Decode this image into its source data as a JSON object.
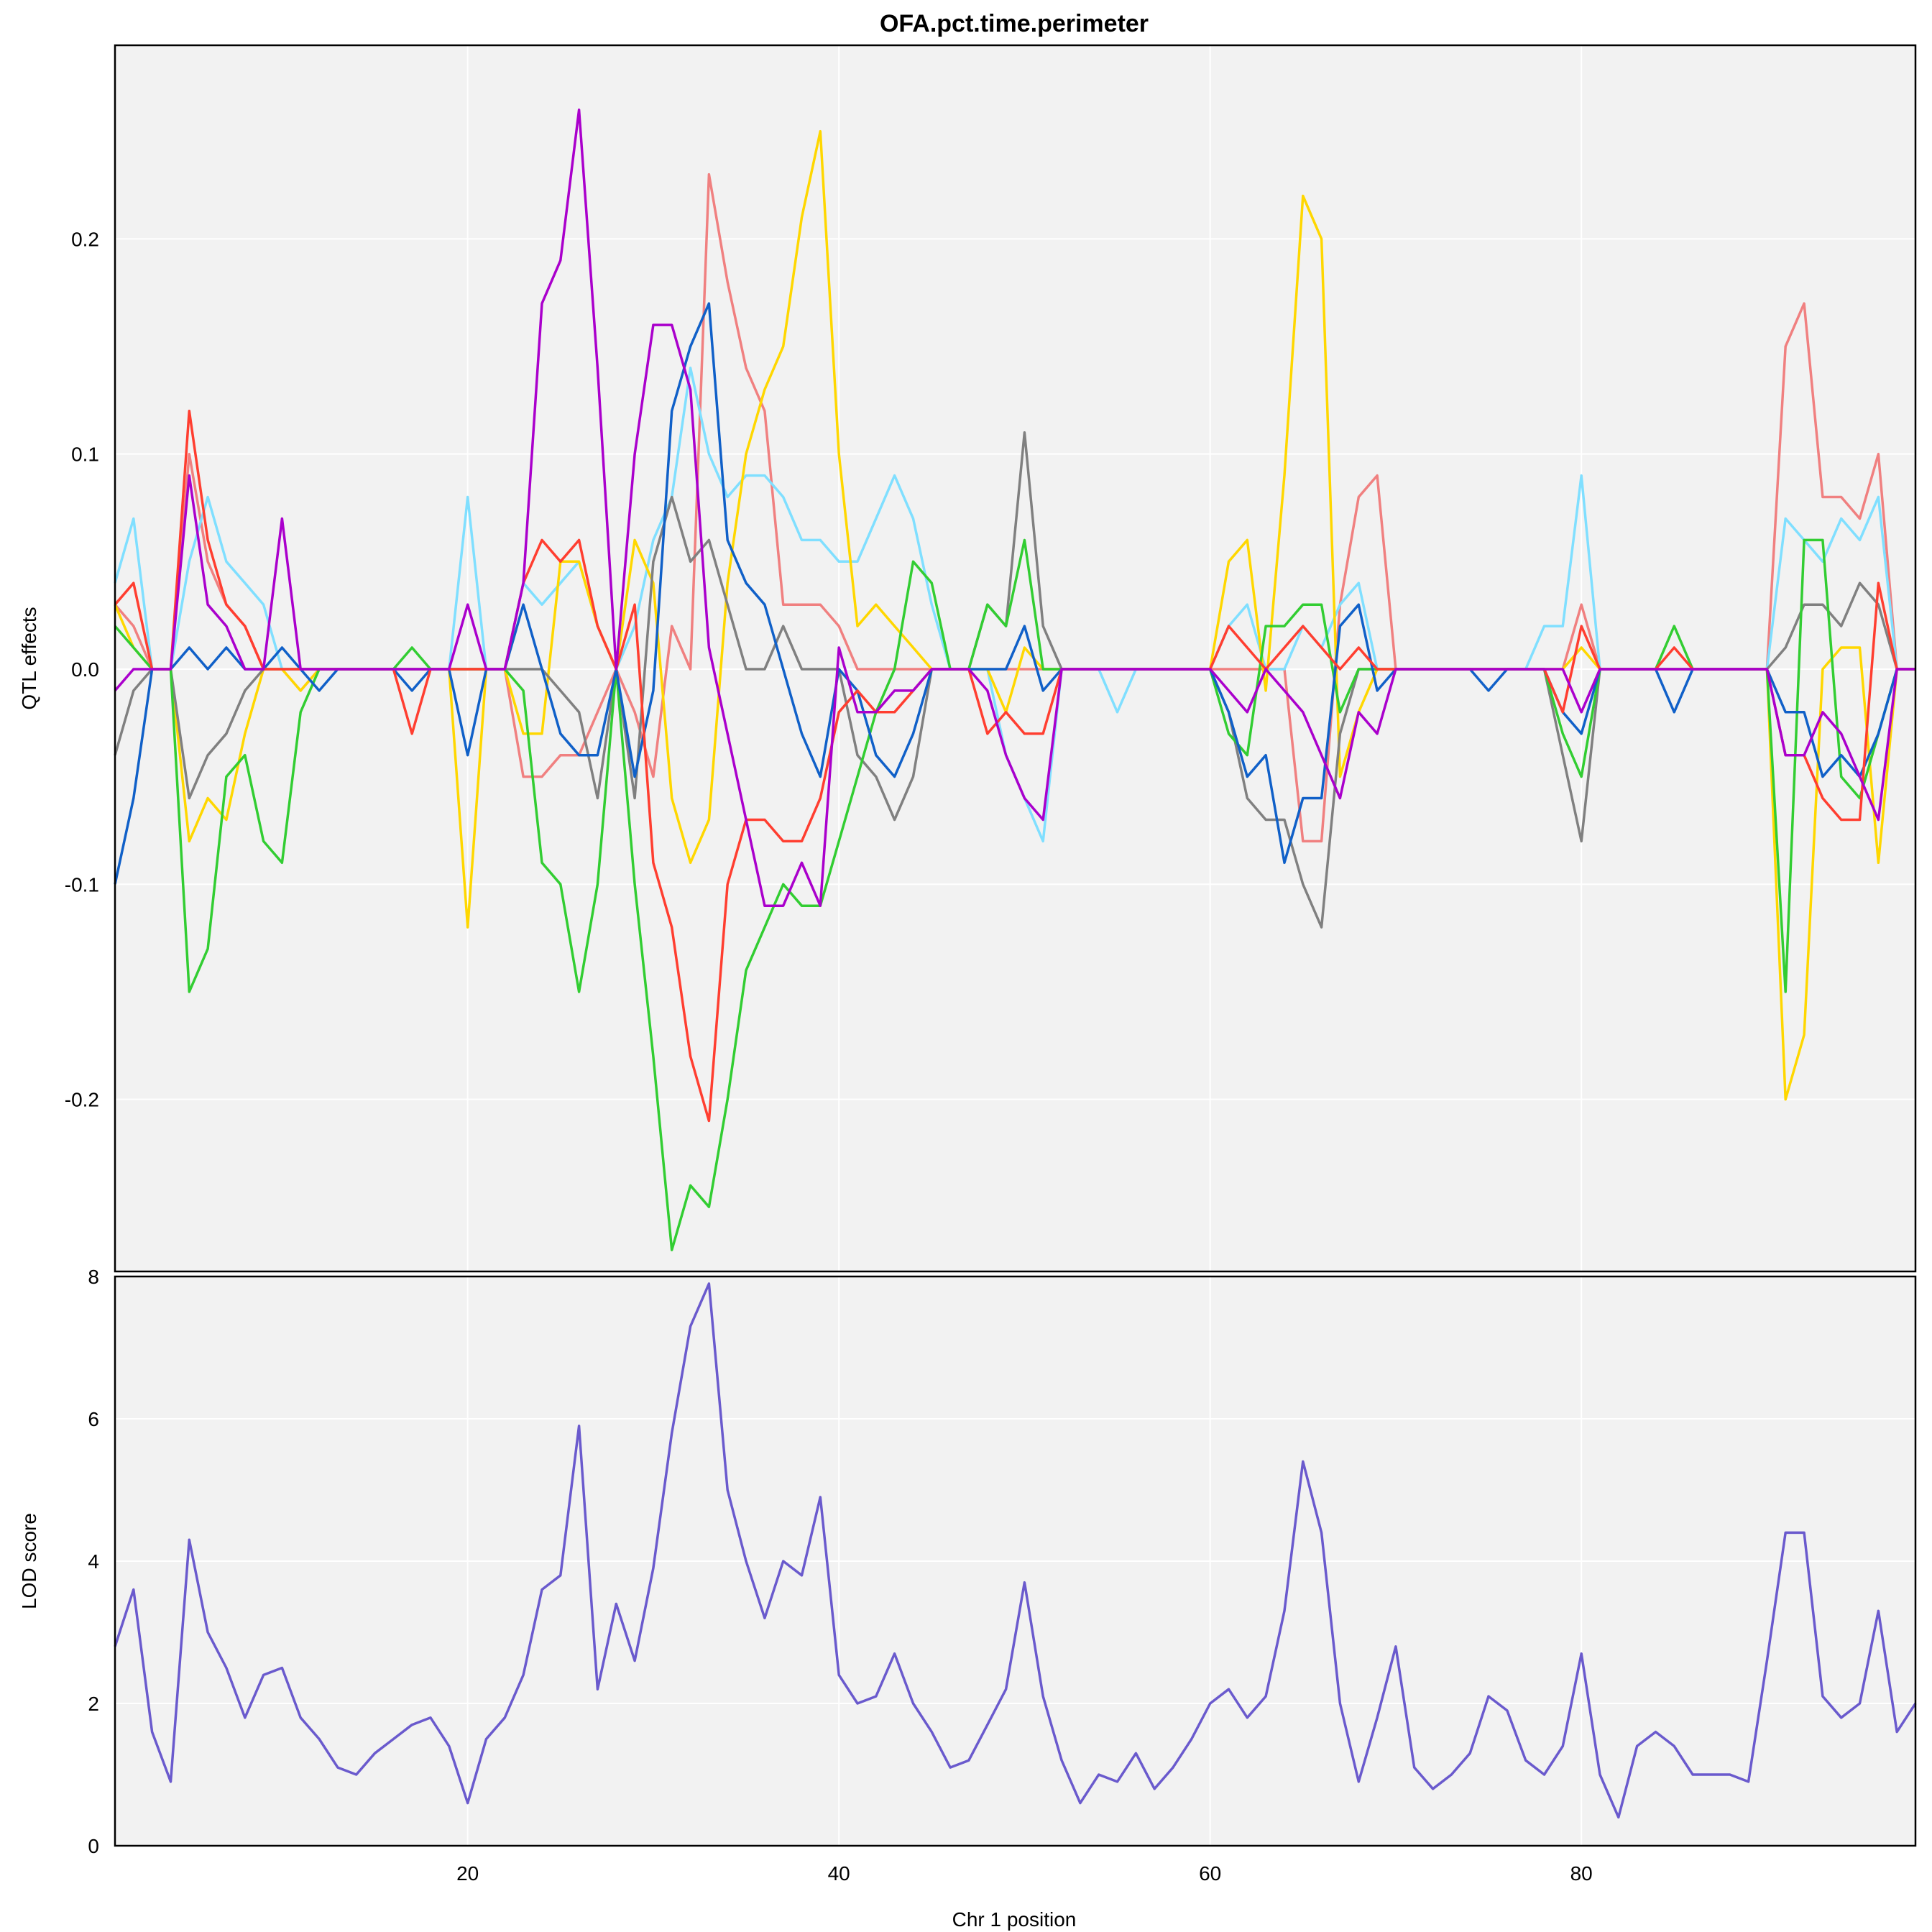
{
  "chart_data": [
    {
      "type": "line",
      "title": "OFA.pct.time.perimeter",
      "ylabel": "QTL effects",
      "xlabel": "",
      "xlim": [
        1,
        98
      ],
      "ylim": [
        -0.28,
        0.29
      ],
      "grid": true,
      "y_ticks": [
        -0.2,
        -0.1,
        0.0,
        0.1,
        0.2
      ],
      "y_tick_labels": [
        "-0.2",
        "-0.1",
        "0.0",
        "0.1",
        "0.2"
      ],
      "x_gridlines": [
        20,
        40,
        60,
        80
      ],
      "x": [
        1,
        2,
        3,
        4,
        5,
        6,
        7,
        8,
        9,
        10,
        11,
        12,
        13,
        14,
        15,
        16,
        17,
        18,
        19,
        20,
        21,
        22,
        23,
        24,
        25,
        26,
        27,
        28,
        29,
        30,
        31,
        32,
        33,
        34,
        35,
        36,
        37,
        38,
        39,
        40,
        41,
        42,
        43,
        44,
        45,
        46,
        47,
        48,
        49,
        50,
        51,
        52,
        53,
        54,
        55,
        56,
        57,
        58,
        59,
        60,
        61,
        62,
        63,
        64,
        65,
        66,
        67,
        68,
        69,
        70,
        71,
        72,
        73,
        74,
        75,
        76,
        77,
        78,
        79,
        80,
        81,
        82,
        83,
        84,
        85,
        86,
        87,
        88,
        89,
        90,
        91,
        92,
        93,
        94,
        95,
        96,
        97,
        98
      ],
      "series": [
        {
          "color": "#f08080",
          "values": [
            0.03,
            0.02,
            0.0,
            0.0,
            0.1,
            0.05,
            0.03,
            0.02,
            0.0,
            0.0,
            -0.01,
            0.0,
            0.0,
            0.0,
            0.0,
            0.0,
            0.0,
            0.0,
            0.0,
            0.0,
            0.0,
            0.0,
            -0.05,
            -0.05,
            -0.04,
            -0.04,
            -0.02,
            0.0,
            -0.02,
            -0.05,
            0.02,
            0.0,
            0.23,
            0.18,
            0.14,
            0.12,
            0.03,
            0.03,
            0.03,
            0.02,
            0.0,
            0.0,
            0.0,
            0.0,
            0.0,
            0.0,
            0.0,
            0.0,
            0.0,
            0.0,
            0.0,
            0.0,
            0.0,
            0.0,
            0.0,
            0.0,
            0.0,
            0.0,
            0.0,
            0.0,
            0.0,
            0.0,
            0.0,
            0.0,
            -0.08,
            -0.08,
            0.03,
            0.08,
            0.09,
            0.0,
            0.0,
            0.0,
            0.0,
            0.0,
            0.0,
            0.0,
            0.0,
            0.0,
            0.0,
            0.03,
            0.0,
            0.0,
            0.0,
            0.0,
            0.0,
            0.0,
            0.0,
            0.0,
            0.0,
            0.0,
            0.15,
            0.17,
            0.08,
            0.08,
            0.07,
            0.1,
            0.0,
            0.0
          ]
        },
        {
          "color": "#80dfff",
          "values": [
            0.04,
            0.07,
            0.0,
            0.0,
            0.05,
            0.08,
            0.05,
            0.04,
            0.03,
            0.0,
            0.0,
            0.0,
            0.0,
            0.0,
            0.0,
            0.0,
            0.0,
            0.0,
            0.0,
            0.08,
            0.0,
            0.0,
            0.04,
            0.03,
            0.04,
            0.05,
            0.02,
            0.0,
            0.02,
            0.06,
            0.08,
            0.14,
            0.1,
            0.08,
            0.09,
            0.09,
            0.08,
            0.06,
            0.06,
            0.05,
            0.05,
            0.07,
            0.09,
            0.07,
            0.03,
            0.0,
            0.0,
            0.0,
            -0.04,
            -0.06,
            -0.08,
            0.0,
            0.0,
            0.0,
            -0.02,
            0.0,
            0.0,
            0.0,
            0.0,
            0.0,
            0.02,
            0.03,
            0.0,
            0.0,
            0.02,
            0.01,
            0.03,
            0.04,
            0.0,
            0.0,
            0.0,
            0.0,
            0.0,
            0.0,
            0.0,
            0.0,
            0.0,
            0.02,
            0.02,
            0.09,
            0.0,
            0.0,
            0.0,
            0.0,
            0.0,
            0.0,
            0.0,
            0.0,
            0.0,
            0.0,
            0.07,
            0.06,
            0.05,
            0.07,
            0.06,
            0.08,
            0.0,
            0.0
          ]
        },
        {
          "color": "#ffd700",
          "values": [
            0.03,
            0.01,
            0.0,
            0.0,
            -0.08,
            -0.06,
            -0.07,
            -0.03,
            0.0,
            0.0,
            -0.01,
            0.0,
            0.0,
            0.0,
            0.0,
            0.0,
            0.0,
            0.0,
            0.0,
            -0.12,
            0.0,
            0.0,
            -0.03,
            -0.03,
            0.05,
            0.05,
            0.02,
            0.0,
            0.06,
            0.04,
            -0.06,
            -0.09,
            -0.07,
            0.04,
            0.1,
            0.13,
            0.15,
            0.21,
            0.25,
            0.1,
            0.02,
            0.03,
            0.02,
            0.01,
            0.0,
            0.0,
            0.0,
            0.0,
            -0.02,
            0.01,
            0.0,
            0.0,
            0.0,
            0.0,
            0.0,
            0.0,
            0.0,
            0.0,
            0.0,
            0.0,
            0.05,
            0.06,
            -0.01,
            0.09,
            0.22,
            0.2,
            -0.05,
            -0.02,
            0.0,
            0.0,
            0.0,
            0.0,
            0.0,
            0.0,
            0.0,
            0.0,
            0.0,
            0.0,
            0.0,
            0.01,
            0.0,
            0.0,
            0.0,
            0.0,
            0.0,
            0.0,
            0.0,
            0.0,
            0.0,
            0.0,
            -0.2,
            -0.17,
            0.0,
            0.01,
            0.01,
            -0.09,
            0.0,
            0.0
          ]
        },
        {
          "color": "#808080",
          "values": [
            -0.04,
            -0.01,
            0.0,
            0.0,
            -0.06,
            -0.04,
            -0.03,
            -0.01,
            0.0,
            0.0,
            0.0,
            0.0,
            0.0,
            0.0,
            0.0,
            0.0,
            0.0,
            0.0,
            0.0,
            0.0,
            0.0,
            0.0,
            0.0,
            0.0,
            -0.01,
            -0.02,
            -0.06,
            0.0,
            -0.06,
            0.05,
            0.08,
            0.05,
            0.06,
            0.03,
            0.0,
            0.0,
            0.02,
            0.0,
            0.0,
            0.0,
            -0.04,
            -0.05,
            -0.07,
            -0.05,
            0.0,
            0.0,
            0.0,
            0.03,
            0.02,
            0.11,
            0.02,
            0.0,
            0.0,
            0.0,
            0.0,
            0.0,
            0.0,
            0.0,
            0.0,
            0.0,
            -0.02,
            -0.06,
            -0.07,
            -0.07,
            -0.1,
            -0.12,
            -0.03,
            0.0,
            0.0,
            0.0,
            0.0,
            0.0,
            0.0,
            0.0,
            0.0,
            0.0,
            0.0,
            0.0,
            -0.04,
            -0.08,
            0.0,
            0.0,
            0.0,
            0.0,
            0.0,
            0.0,
            0.0,
            0.0,
            0.0,
            0.0,
            0.01,
            0.03,
            0.03,
            0.02,
            0.04,
            0.03,
            0.0,
            0.0
          ]
        },
        {
          "color": "#32cd32",
          "values": [
            0.02,
            0.01,
            0.0,
            0.0,
            -0.15,
            -0.13,
            -0.05,
            -0.04,
            -0.08,
            -0.09,
            -0.02,
            0.0,
            0.0,
            0.0,
            0.0,
            0.0,
            0.01,
            0.0,
            0.0,
            0.0,
            0.0,
            0.0,
            -0.01,
            -0.09,
            -0.1,
            -0.15,
            -0.1,
            0.0,
            -0.1,
            -0.18,
            -0.27,
            -0.24,
            -0.25,
            -0.2,
            -0.14,
            -0.12,
            -0.1,
            -0.11,
            -0.11,
            -0.08,
            -0.05,
            -0.02,
            0.0,
            0.05,
            0.04,
            0.0,
            0.0,
            0.03,
            0.02,
            0.06,
            0.0,
            0.0,
            0.0,
            0.0,
            0.0,
            0.0,
            0.0,
            0.0,
            0.0,
            0.0,
            -0.03,
            -0.04,
            0.02,
            0.02,
            0.03,
            0.03,
            -0.02,
            0.0,
            0.0,
            0.0,
            0.0,
            0.0,
            0.0,
            0.0,
            0.0,
            0.0,
            0.0,
            0.0,
            -0.03,
            -0.05,
            0.0,
            0.0,
            0.0,
            0.0,
            0.02,
            0.0,
            0.0,
            0.0,
            0.0,
            0.0,
            -0.15,
            0.06,
            0.06,
            -0.05,
            -0.06,
            -0.03,
            0.0,
            0.0
          ]
        },
        {
          "color": "#1060c8",
          "values": [
            -0.1,
            -0.06,
            0.0,
            0.0,
            0.01,
            0.0,
            0.01,
            0.0,
            0.0,
            0.01,
            0.0,
            -0.01,
            0.0,
            0.0,
            0.0,
            0.0,
            -0.01,
            0.0,
            0.0,
            -0.04,
            0.0,
            0.0,
            0.03,
            0.0,
            -0.03,
            -0.04,
            -0.04,
            0.0,
            -0.05,
            -0.01,
            0.12,
            0.15,
            0.17,
            0.06,
            0.04,
            0.03,
            0.0,
            -0.03,
            -0.05,
            0.0,
            -0.01,
            -0.04,
            -0.05,
            -0.03,
            0.0,
            0.0,
            0.0,
            0.0,
            0.0,
            0.02,
            -0.01,
            0.0,
            0.0,
            0.0,
            0.0,
            0.0,
            0.0,
            0.0,
            0.0,
            0.0,
            -0.02,
            -0.05,
            -0.04,
            -0.09,
            -0.06,
            -0.06,
            0.02,
            0.03,
            -0.01,
            0.0,
            0.0,
            0.0,
            0.0,
            0.0,
            -0.01,
            0.0,
            0.0,
            0.0,
            -0.02,
            -0.03,
            0.0,
            0.0,
            0.0,
            0.0,
            -0.02,
            0.0,
            0.0,
            0.0,
            0.0,
            0.0,
            -0.02,
            -0.02,
            -0.05,
            -0.04,
            -0.05,
            -0.03,
            0.0,
            0.0
          ]
        },
        {
          "color": "#ff3e30",
          "values": [
            0.03,
            0.04,
            0.0,
            0.0,
            0.12,
            0.06,
            0.03,
            0.02,
            0.0,
            0.0,
            0.0,
            0.0,
            0.0,
            0.0,
            0.0,
            0.0,
            -0.03,
            0.0,
            0.0,
            0.0,
            0.0,
            0.0,
            0.04,
            0.06,
            0.05,
            0.06,
            0.02,
            0.0,
            0.03,
            -0.09,
            -0.12,
            -0.18,
            -0.21,
            -0.1,
            -0.07,
            -0.07,
            -0.08,
            -0.08,
            -0.06,
            -0.02,
            -0.01,
            -0.02,
            -0.02,
            -0.01,
            0.0,
            0.0,
            0.0,
            -0.03,
            -0.02,
            -0.03,
            -0.03,
            0.0,
            0.0,
            0.0,
            0.0,
            0.0,
            0.0,
            0.0,
            0.0,
            0.0,
            0.02,
            0.01,
            0.0,
            0.01,
            0.02,
            0.01,
            0.0,
            0.01,
            0.0,
            0.0,
            0.0,
            0.0,
            0.0,
            0.0,
            0.0,
            0.0,
            0.0,
            0.0,
            -0.02,
            0.02,
            0.0,
            0.0,
            0.0,
            0.0,
            0.01,
            0.0,
            0.0,
            0.0,
            0.0,
            0.0,
            -0.04,
            -0.04,
            -0.06,
            -0.07,
            -0.07,
            0.04,
            0.0,
            0.0
          ]
        },
        {
          "color": "#aa00cc",
          "values": [
            -0.01,
            0.0,
            0.0,
            0.0,
            0.09,
            0.03,
            0.02,
            0.0,
            0.0,
            0.07,
            0.0,
            0.0,
            0.0,
            0.0,
            0.0,
            0.0,
            0.0,
            0.0,
            0.0,
            0.03,
            0.0,
            0.0,
            0.04,
            0.17,
            0.19,
            0.26,
            0.14,
            0.0,
            0.1,
            0.16,
            0.16,
            0.13,
            0.01,
            -0.03,
            -0.07,
            -0.11,
            -0.11,
            -0.09,
            -0.11,
            0.01,
            -0.02,
            -0.02,
            -0.01,
            -0.01,
            0.0,
            0.0,
            0.0,
            -0.01,
            -0.04,
            -0.06,
            -0.07,
            0.0,
            0.0,
            0.0,
            0.0,
            0.0,
            0.0,
            0.0,
            0.0,
            0.0,
            -0.01,
            -0.02,
            0.0,
            -0.01,
            -0.02,
            -0.04,
            -0.06,
            -0.02,
            -0.03,
            0.0,
            0.0,
            0.0,
            0.0,
            0.0,
            0.0,
            0.0,
            0.0,
            0.0,
            0.0,
            -0.02,
            0.0,
            0.0,
            0.0,
            0.0,
            0.0,
            0.0,
            0.0,
            0.0,
            0.0,
            0.0,
            -0.04,
            -0.04,
            -0.02,
            -0.03,
            -0.05,
            -0.07,
            0.0,
            0.0
          ]
        }
      ]
    },
    {
      "type": "line",
      "title": "",
      "ylabel": "LOD score",
      "xlabel": "Chr 1 position",
      "xlim": [
        1,
        98
      ],
      "ylim": [
        0,
        8
      ],
      "grid": true,
      "y_ticks": [
        0,
        2,
        4,
        6,
        8
      ],
      "y_tick_labels": [
        "0",
        "2",
        "4",
        "6",
        "8"
      ],
      "x_ticks": [
        20,
        40,
        60,
        80
      ],
      "x_tick_labels": [
        "20",
        "40",
        "60",
        "80"
      ],
      "x": [
        1,
        2,
        3,
        4,
        5,
        6,
        7,
        8,
        9,
        10,
        11,
        12,
        13,
        14,
        15,
        16,
        17,
        18,
        19,
        20,
        21,
        22,
        23,
        24,
        25,
        26,
        27,
        28,
        29,
        30,
        31,
        32,
        33,
        34,
        35,
        36,
        37,
        38,
        39,
        40,
        41,
        42,
        43,
        44,
        45,
        46,
        47,
        48,
        49,
        50,
        51,
        52,
        53,
        54,
        55,
        56,
        57,
        58,
        59,
        60,
        61,
        62,
        63,
        64,
        65,
        66,
        67,
        68,
        69,
        70,
        71,
        72,
        73,
        74,
        75,
        76,
        77,
        78,
        79,
        80,
        81,
        82,
        83,
        84,
        85,
        86,
        87,
        88,
        89,
        90,
        91,
        92,
        93,
        94,
        95,
        96,
        97,
        98
      ],
      "series": [
        {
          "color": "#6a5acd",
          "values": [
            2.8,
            3.6,
            1.6,
            0.9,
            4.3,
            3.0,
            2.5,
            1.8,
            2.4,
            2.5,
            1.8,
            1.5,
            1.1,
            1.0,
            1.3,
            1.5,
            1.7,
            1.8,
            1.4,
            0.6,
            1.5,
            1.8,
            2.4,
            3.6,
            3.8,
            5.9,
            2.2,
            3.4,
            2.6,
            3.9,
            5.8,
            7.3,
            7.9,
            5.0,
            4.0,
            3.2,
            4.0,
            3.8,
            4.9,
            2.4,
            2.0,
            2.1,
            2.7,
            2.0,
            1.6,
            1.1,
            1.2,
            1.7,
            2.2,
            3.7,
            2.1,
            1.2,
            0.6,
            1.0,
            0.9,
            1.3,
            0.8,
            1.1,
            1.5,
            2.0,
            2.2,
            1.8,
            2.1,
            3.3,
            5.4,
            4.4,
            2.0,
            0.9,
            1.8,
            2.8,
            1.1,
            0.8,
            1.0,
            1.3,
            2.1,
            1.9,
            1.2,
            1.0,
            1.4,
            2.7,
            1.0,
            0.4,
            1.4,
            1.6,
            1.4,
            1.0,
            1.0,
            1.0,
            0.9,
            2.6,
            4.4,
            4.4,
            2.1,
            1.8,
            2.0,
            3.3,
            1.6,
            2.0
          ]
        }
      ]
    }
  ]
}
